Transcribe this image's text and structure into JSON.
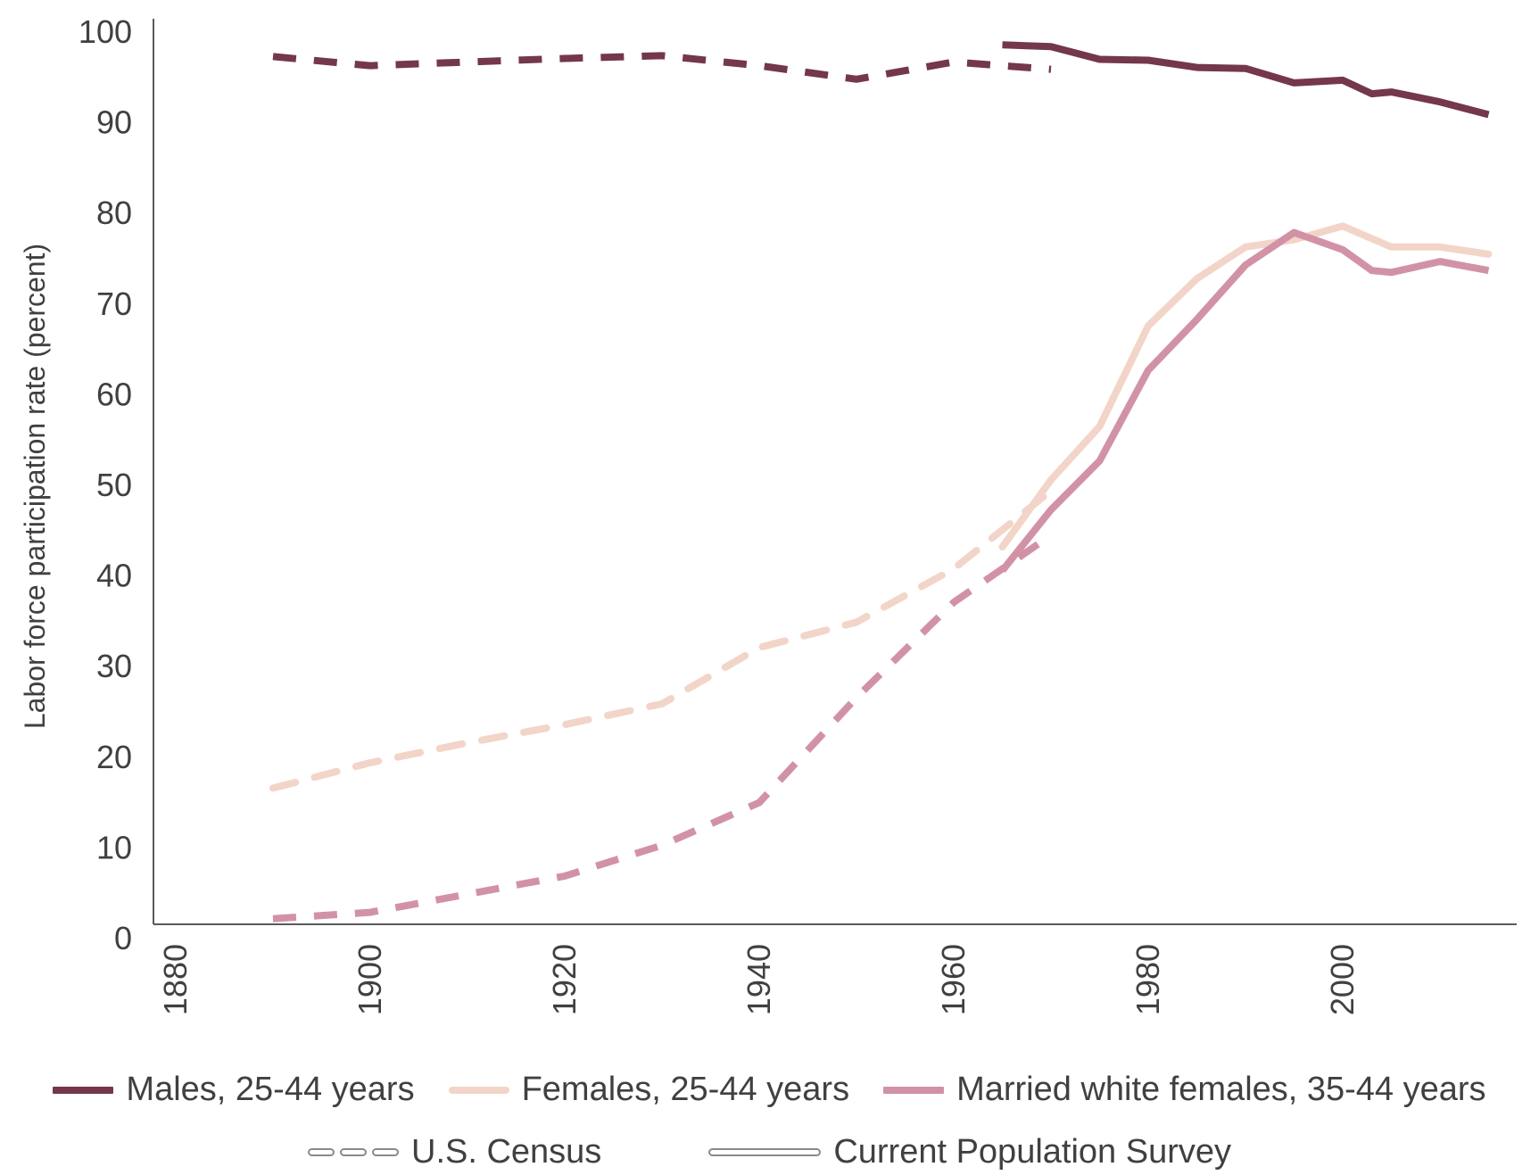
{
  "chart_data": {
    "type": "line",
    "title": "",
    "xlabel": "",
    "ylabel": "Labor force participation rate (percent)",
    "xlim": [
      1880,
      2016
    ],
    "ylim": [
      0,
      100
    ],
    "x_ticks": [
      "1880",
      "1900",
      "1920",
      "1940",
      "1960",
      "1980",
      "2000"
    ],
    "y_ticks": [
      "0",
      "10",
      "20",
      "30",
      "40",
      "50",
      "60",
      "70",
      "80",
      "90",
      "100"
    ],
    "grid": false,
    "legend_position": "bottom",
    "series": [
      {
        "name": "Males, 25-44 years",
        "source": "U.S. Census",
        "color": "#74374d",
        "style": "dashed",
        "x": [
          1890,
          1900,
          1910,
          1920,
          1930,
          1940,
          1950,
          1960,
          1970
        ],
        "y": [
          97.2,
          96.2,
          96.6,
          97.0,
          97.3,
          96.2,
          94.7,
          96.6,
          95.8
        ]
      },
      {
        "name": "Males, 25-44 years",
        "source": "Current Population Survey",
        "color": "#74374d",
        "style": "solid",
        "x": [
          1965,
          1970,
          1975,
          1980,
          1985,
          1990,
          1995,
          2000,
          2003,
          2005,
          2010,
          2015
        ],
        "y": [
          98.5,
          98.3,
          96.9,
          96.8,
          96.0,
          95.9,
          94.3,
          94.6,
          93.1,
          93.3,
          92.2,
          90.8
        ]
      },
      {
        "name": "Females, 25-44 years",
        "source": "U.S. Census",
        "color": "#f2d5c8",
        "style": "dashed",
        "x": [
          1890,
          1900,
          1910,
          1920,
          1930,
          1940,
          1950,
          1960,
          1970
        ],
        "y": [
          16.5,
          19.3,
          21.5,
          23.5,
          25.8,
          32.0,
          34.8,
          40.7,
          49.3
        ]
      },
      {
        "name": "Females, 25-44 years",
        "source": "Current Population Survey",
        "color": "#f2d5c8",
        "style": "solid",
        "x": [
          1965,
          1970,
          1975,
          1980,
          1985,
          1990,
          1995,
          2000,
          2005,
          2010,
          2015
        ],
        "y": [
          43.1,
          50.5,
          56.4,
          67.5,
          72.7,
          76.2,
          77.0,
          78.5,
          76.2,
          76.2,
          75.4
        ]
      },
      {
        "name": "Married white females, 35-44 years",
        "source": "U.S. Census",
        "color": "#d292a6",
        "style": "dashed",
        "x": [
          1890,
          1900,
          1910,
          1920,
          1930,
          1940,
          1950,
          1960,
          1970
        ],
        "y": [
          2.1,
          2.8,
          4.8,
          6.8,
          10.2,
          14.9,
          26.5,
          37.0,
          44.4
        ]
      },
      {
        "name": "Married white females, 35-44 years",
        "source": "Current Population Survey",
        "color": "#d292a6",
        "style": "solid",
        "x": [
          1965,
          1970,
          1975,
          1980,
          1985,
          1990,
          1995,
          2000,
          2003,
          2005,
          2010,
          2015
        ],
        "y": [
          40.5,
          47.2,
          52.6,
          62.6,
          68.2,
          74.2,
          77.8,
          75.9,
          73.6,
          73.4,
          74.6,
          73.6
        ]
      }
    ]
  },
  "legend": {
    "series": [
      {
        "label": "Males, 25-44 years",
        "color": "#74374d"
      },
      {
        "label": "Females, 25-44 years",
        "color": "#f2d5c8"
      },
      {
        "label": "Married white females, 35-44 years",
        "color": "#d292a6"
      }
    ],
    "styles": [
      {
        "label": "U.S. Census",
        "style": "dashed"
      },
      {
        "label": "Current Population Survey",
        "style": "solid"
      }
    ]
  }
}
